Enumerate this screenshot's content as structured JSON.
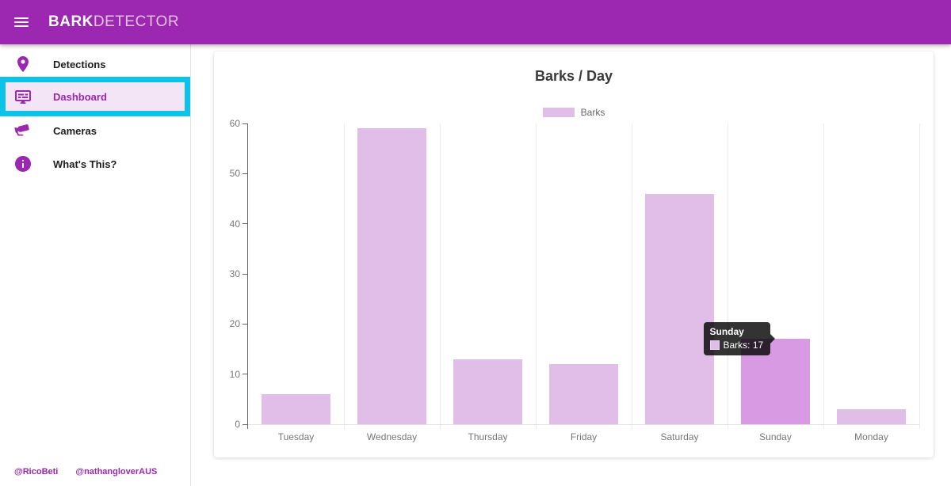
{
  "header": {
    "brand_bold": "BARK",
    "brand_light": "DETECTOR",
    "color": "#9C27B0"
  },
  "sidebar": {
    "items": [
      {
        "label": "Detections",
        "icon": "location-pin-icon",
        "active": false
      },
      {
        "label": "Dashboard",
        "icon": "dashboard-monitor-icon",
        "active": true
      },
      {
        "label": "Cameras",
        "icon": "security-camera-icon",
        "active": false
      },
      {
        "label": "What's This?",
        "icon": "info-icon",
        "active": false
      }
    ],
    "active_highlight_color": "#0BC3E9",
    "active_bg_color": "#F3E5F5",
    "footer_links": [
      "@RicoBeti",
      "@nathangloverAUS"
    ]
  },
  "chart_data": {
    "type": "bar",
    "title": "Barks / Day",
    "legend": [
      {
        "label": "Barks",
        "color": "#E0BEE7"
      }
    ],
    "legend_position": "top",
    "categories": [
      "Tuesday",
      "Wednesday",
      "Thursday",
      "Friday",
      "Saturday",
      "Sunday",
      "Monday"
    ],
    "series": [
      {
        "name": "Barks",
        "values": [
          6,
          59,
          13,
          12,
          46,
          17,
          3
        ]
      }
    ],
    "xlabel": "",
    "ylabel": "",
    "ylim": [
      0,
      60
    ],
    "yticks": [
      0,
      10,
      20,
      30,
      40,
      50,
      60
    ],
    "grid": "vertical-only",
    "bar_color": "#E0BEE7",
    "hover_bar_color": "#D99AE4",
    "hovered_index": 5
  },
  "tooltip": {
    "title": "Sunday",
    "value_label": "Barks: 17"
  }
}
